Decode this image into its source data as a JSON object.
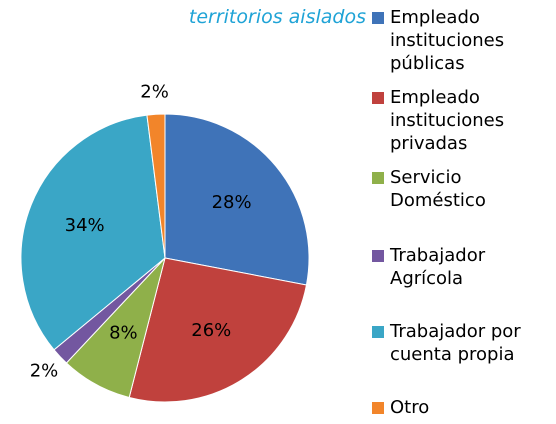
{
  "chart_data": {
    "type": "pie",
    "title": "territorios aislados",
    "categories": [
      "Empleado instituciones públicas",
      "Empleado instituciones privadas",
      "Servicio Doméstico",
      "Trabajador Agrícola",
      "Trabajador por cuenta propia",
      "Otro"
    ],
    "values": [
      28,
      26,
      8,
      2,
      34,
      2
    ],
    "value_labels": [
      "28%",
      "26%",
      "8%",
      "2%",
      "34%",
      "2%"
    ],
    "colors": [
      "#3f73b8",
      "#c0413d",
      "#8fb04a",
      "#7357a0",
      "#3aa6c6",
      "#f2852a"
    ],
    "legend": "right"
  }
}
